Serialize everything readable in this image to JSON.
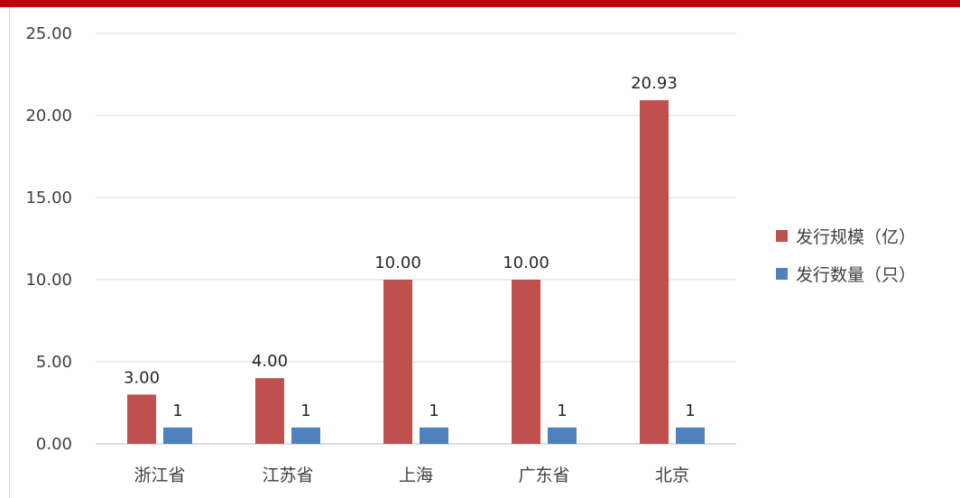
{
  "chart_data": {
    "type": "bar",
    "categories": [
      "浙江省",
      "江苏省",
      "上海",
      "广东省",
      "北京"
    ],
    "series": [
      {
        "name": "发行规模（亿）",
        "color": "#c0504d",
        "values": [
          3.0,
          4.0,
          10.0,
          10.0,
          20.93
        ],
        "labels": [
          "3.00",
          "4.00",
          "10.00",
          "10.00",
          "20.93"
        ]
      },
      {
        "name": "发行数量（只）",
        "color": "#4f81bd",
        "values": [
          1,
          1,
          1,
          1,
          1
        ],
        "labels": [
          "1",
          "1",
          "1",
          "1",
          "1"
        ]
      }
    ],
    "ylim": [
      0,
      25
    ],
    "yticks": [
      "0.00",
      "5.00",
      "10.00",
      "15.00",
      "20.00",
      "25.00"
    ],
    "grid": true,
    "legend_position": "right"
  }
}
